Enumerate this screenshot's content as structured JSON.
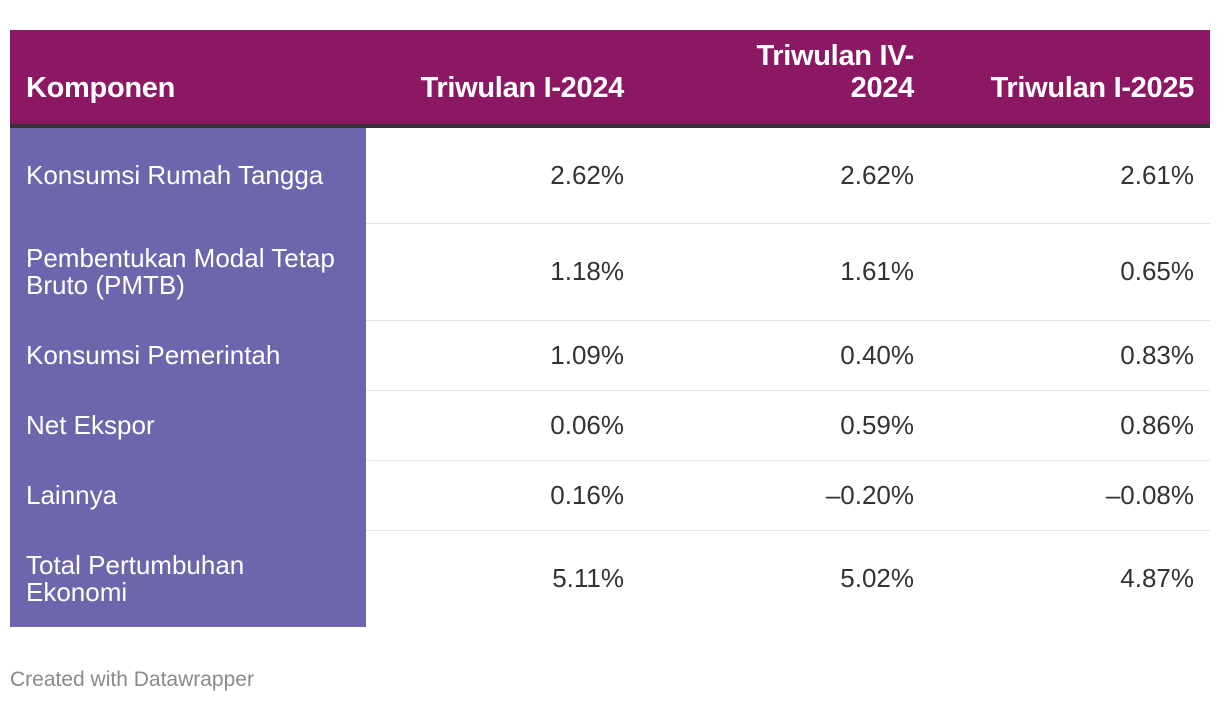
{
  "chart_data": {
    "type": "table",
    "columns": [
      "Komponen",
      "Triwulan I-2024",
      "Triwulan IV-2024",
      "Triwulan I-2025"
    ],
    "rows": [
      {
        "label": "Konsumsi Rumah Tangga",
        "values": [
          "2.62%",
          "2.62%",
          "2.61%"
        ]
      },
      {
        "label": "Pembentukan Modal Tetap Bruto (PMTB)",
        "values": [
          "1.18%",
          "1.61%",
          "0.65%"
        ]
      },
      {
        "label": "Konsumsi Pemerintah",
        "values": [
          "1.09%",
          "0.40%",
          "0.83%"
        ]
      },
      {
        "label": "Net Ekspor",
        "values": [
          "0.06%",
          "0.59%",
          "0.86%"
        ]
      },
      {
        "label": "Lainnya",
        "values": [
          "0.16%",
          "–0.20%",
          "–0.08%"
        ]
      },
      {
        "label": "Total Pertumbuhan Ekonomi",
        "values": [
          "5.11%",
          "5.02%",
          "4.87%"
        ]
      }
    ],
    "header_color": "#8c1762",
    "label_column_color": "#6e66ad"
  },
  "footer": {
    "credit": "Created with Datawrapper"
  }
}
